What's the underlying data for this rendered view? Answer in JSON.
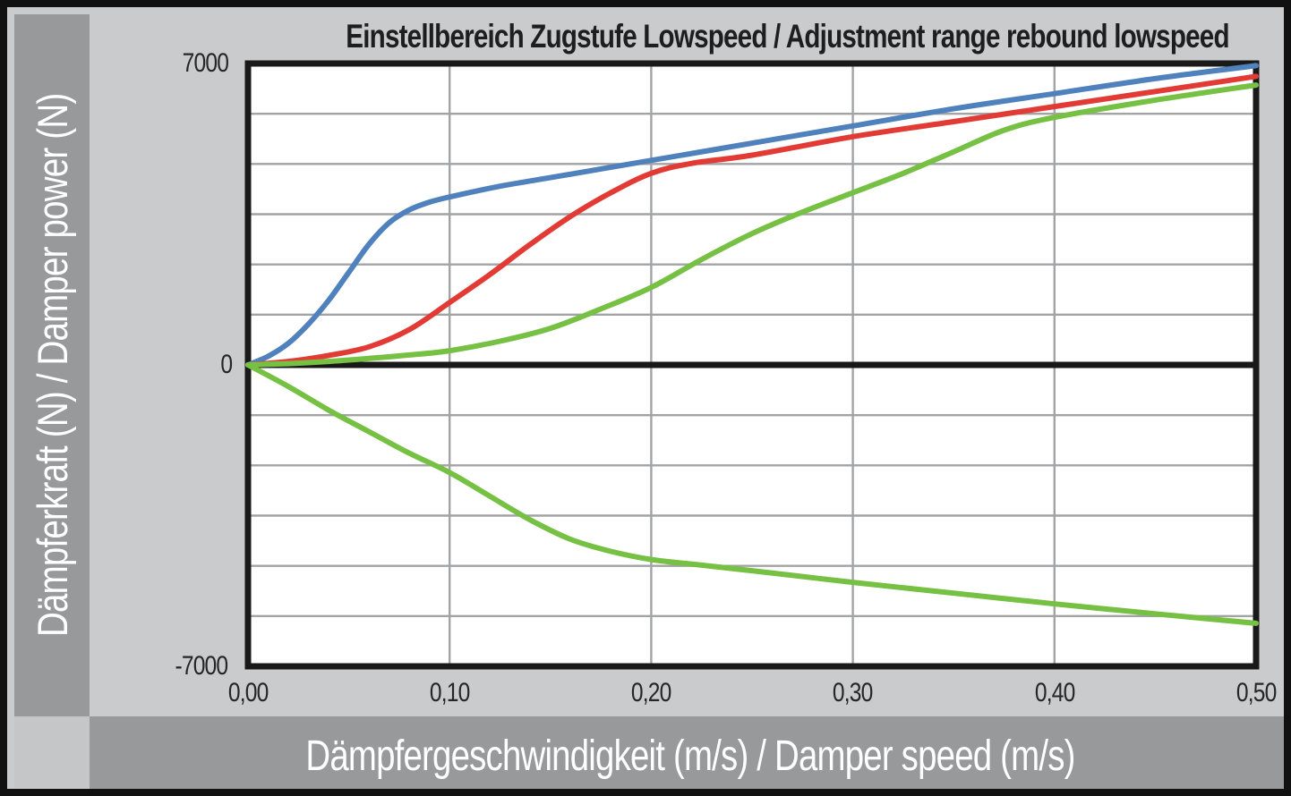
{
  "window": {
    "background": "#cacbcd",
    "band_color": "#98999b",
    "corner_color": "#c5c6c8",
    "frame_color": "#191919",
    "plot_background": "#ffffff"
  },
  "title": "Einstellbereich Zugstufe Lowspeed / Adjustment range rebound lowspeed",
  "y_axis_label": "Dämpferkraft (N) / Damper power (N)",
  "x_axis_label": "Dämpfergeschwindigkeit (m/s) / Damper speed (m/s)",
  "chart_data": {
    "type": "line",
    "title": "Einstellbereich Zugstufe Lowspeed / Adjustment range rebound lowspeed",
    "xlabel": "Dämpfergeschwindigkeit (m/s) / Damper speed (m/s)",
    "ylabel": "Dämpferkraft (N) / Damper power (N)",
    "xlim": [
      0,
      0.5
    ],
    "ylim": [
      -7000,
      7000
    ],
    "grid": {
      "on": true,
      "x_step": 0.1,
      "y_divisions_per_half": 6,
      "color": "#a2a3a5"
    },
    "legend": "none",
    "x_ticks": [
      {
        "value": 0.0,
        "label": "0,00"
      },
      {
        "value": 0.1,
        "label": "0,10"
      },
      {
        "value": 0.2,
        "label": "0,20"
      },
      {
        "value": 0.3,
        "label": "0,30"
      },
      {
        "value": 0.4,
        "label": "0,40"
      },
      {
        "value": 0.5,
        "label": "0,50"
      }
    ],
    "y_ticks": [
      {
        "value": 7000,
        "label": "7000"
      },
      {
        "value": 0,
        "label": "0"
      },
      {
        "value": -7000,
        "label": "-7000"
      }
    ],
    "series": [
      {
        "name": "blue-upper-curve",
        "color": "#4f81bd",
        "points": [
          [
            0.0,
            0
          ],
          [
            0.01,
            200
          ],
          [
            0.02,
            500
          ],
          [
            0.03,
            950
          ],
          [
            0.04,
            1500
          ],
          [
            0.05,
            2150
          ],
          [
            0.06,
            2800
          ],
          [
            0.07,
            3300
          ],
          [
            0.08,
            3600
          ],
          [
            0.09,
            3780
          ],
          [
            0.1,
            3900
          ],
          [
            0.125,
            4150
          ],
          [
            0.15,
            4350
          ],
          [
            0.175,
            4550
          ],
          [
            0.2,
            4750
          ],
          [
            0.25,
            5150
          ],
          [
            0.3,
            5550
          ],
          [
            0.35,
            5950
          ],
          [
            0.4,
            6300
          ],
          [
            0.45,
            6650
          ],
          [
            0.5,
            6950
          ]
        ]
      },
      {
        "name": "red-upper-curve",
        "color": "#e23b35",
        "points": [
          [
            0.0,
            0
          ],
          [
            0.02,
            80
          ],
          [
            0.04,
            220
          ],
          [
            0.06,
            420
          ],
          [
            0.08,
            820
          ],
          [
            0.1,
            1450
          ],
          [
            0.12,
            2100
          ],
          [
            0.14,
            2800
          ],
          [
            0.16,
            3450
          ],
          [
            0.18,
            4000
          ],
          [
            0.2,
            4450
          ],
          [
            0.22,
            4680
          ],
          [
            0.25,
            4870
          ],
          [
            0.3,
            5300
          ],
          [
            0.35,
            5650
          ],
          [
            0.4,
            6000
          ],
          [
            0.45,
            6350
          ],
          [
            0.5,
            6700
          ]
        ]
      },
      {
        "name": "green-upper-curve",
        "color": "#76c043",
        "points": [
          [
            0.0,
            0
          ],
          [
            0.02,
            30
          ],
          [
            0.04,
            80
          ],
          [
            0.06,
            150
          ],
          [
            0.08,
            230
          ],
          [
            0.1,
            330
          ],
          [
            0.125,
            550
          ],
          [
            0.15,
            850
          ],
          [
            0.175,
            1300
          ],
          [
            0.2,
            1800
          ],
          [
            0.225,
            2450
          ],
          [
            0.25,
            3050
          ],
          [
            0.275,
            3550
          ],
          [
            0.3,
            4000
          ],
          [
            0.325,
            4450
          ],
          [
            0.35,
            4950
          ],
          [
            0.375,
            5450
          ],
          [
            0.4,
            5750
          ],
          [
            0.45,
            6150
          ],
          [
            0.5,
            6500
          ]
        ]
      },
      {
        "name": "green-lower-curve",
        "color": "#76c043",
        "points": [
          [
            0.0,
            0
          ],
          [
            0.02,
            -500
          ],
          [
            0.04,
            -1050
          ],
          [
            0.06,
            -1550
          ],
          [
            0.08,
            -2050
          ],
          [
            0.1,
            -2500
          ],
          [
            0.12,
            -3050
          ],
          [
            0.14,
            -3600
          ],
          [
            0.16,
            -4050
          ],
          [
            0.18,
            -4330
          ],
          [
            0.2,
            -4520
          ],
          [
            0.225,
            -4650
          ],
          [
            0.25,
            -4780
          ],
          [
            0.3,
            -5050
          ],
          [
            0.35,
            -5300
          ],
          [
            0.4,
            -5550
          ],
          [
            0.45,
            -5780
          ],
          [
            0.5,
            -6000
          ]
        ]
      }
    ]
  }
}
